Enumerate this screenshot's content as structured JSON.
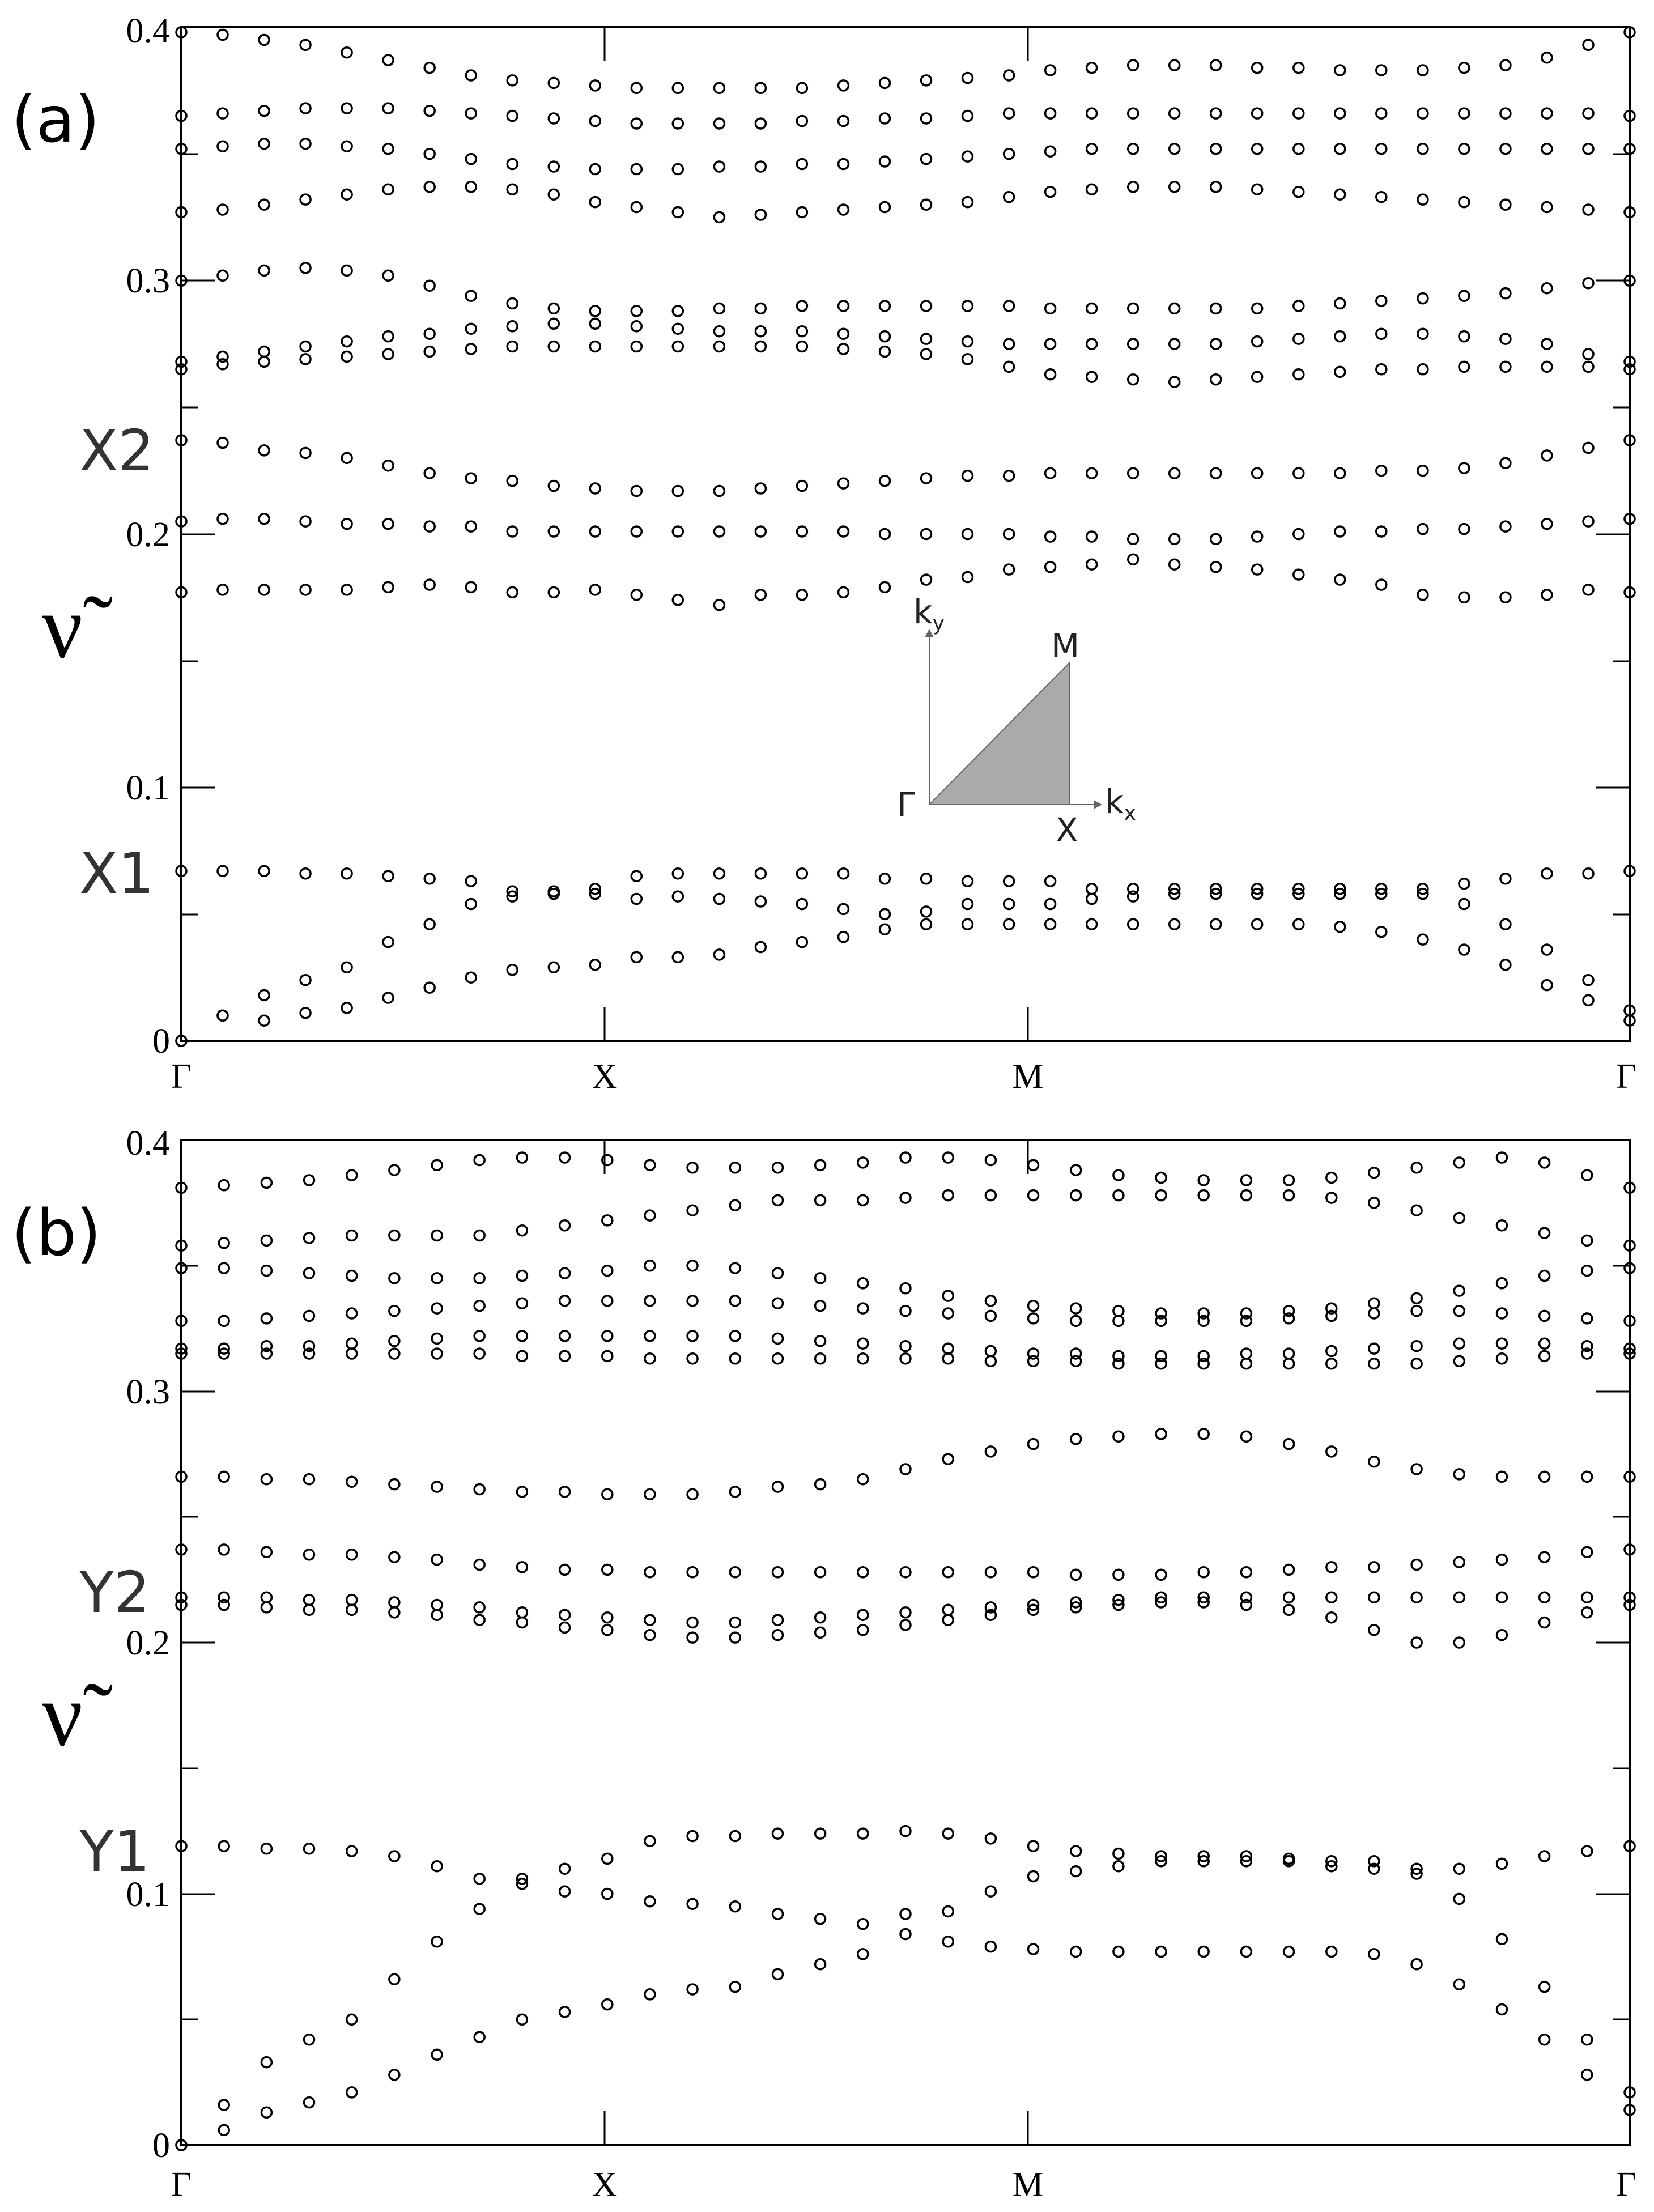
{
  "chart_data": [
    {
      "type": "scatter",
      "panel": "(a)",
      "ylabel": "ν̃",
      "ylim": [
        0,
        0.4
      ],
      "yticks": [
        "0",
        "0.1",
        "0.2",
        "0.3",
        "0.4"
      ],
      "xticks": [
        "Γ",
        "X",
        "M",
        "Γ"
      ],
      "annotations": [
        "X1",
        "X2"
      ],
      "inset": {
        "labels": [
          "Γ",
          "X",
          "M",
          "k",
          "y",
          "k",
          "x"
        ]
      },
      "bands": [
        [
          0.0,
          0.01,
          0.008,
          0.011,
          0.013,
          0.017,
          0.021,
          0.025,
          0.028,
          0.029,
          0.03,
          0.033,
          0.033,
          0.034,
          0.037,
          0.039,
          0.041,
          0.044,
          0.046,
          0.046,
          0.046,
          0.046,
          0.046,
          0.046,
          0.046,
          0.046,
          0.046,
          0.046,
          0.045,
          0.043,
          0.04,
          0.036,
          0.03,
          0.022,
          0.016,
          0.008
        ],
        [
          0.0,
          0.01,
          0.018,
          0.024,
          0.029,
          0.039,
          0.046,
          0.054,
          0.057,
          0.058,
          0.058,
          0.056,
          0.057,
          0.056,
          0.055,
          0.054,
          0.052,
          0.05,
          0.051,
          0.054,
          0.054,
          0.054,
          0.056,
          0.057,
          0.058,
          0.058,
          0.058,
          0.058,
          0.058,
          0.058,
          0.058,
          0.054,
          0.046,
          0.036,
          0.024,
          0.012
        ],
        [
          0.067,
          0.067,
          0.067,
          0.066,
          0.066,
          0.065,
          0.064,
          0.063,
          0.059,
          0.059,
          0.06,
          0.065,
          0.066,
          0.066,
          0.066,
          0.066,
          0.066,
          0.064,
          0.064,
          0.063,
          0.063,
          0.063,
          0.06,
          0.06,
          0.06,
          0.06,
          0.06,
          0.06,
          0.06,
          0.06,
          0.06,
          0.062,
          0.064,
          0.066,
          0.066,
          0.067
        ],
        [
          0.177,
          0.178,
          0.178,
          0.178,
          0.178,
          0.179,
          0.18,
          0.179,
          0.177,
          0.177,
          0.178,
          0.176,
          0.174,
          0.172,
          0.176,
          0.176,
          0.177,
          0.179,
          0.182,
          0.183,
          0.186,
          0.187,
          0.188,
          0.19,
          0.188,
          0.187,
          0.186,
          0.184,
          0.182,
          0.18,
          0.176,
          0.175,
          0.175,
          0.176,
          0.178,
          0.177
        ],
        [
          0.205,
          0.206,
          0.206,
          0.205,
          0.204,
          0.204,
          0.203,
          0.203,
          0.201,
          0.201,
          0.201,
          0.201,
          0.201,
          0.201,
          0.201,
          0.201,
          0.201,
          0.2,
          0.2,
          0.2,
          0.2,
          0.199,
          0.199,
          0.198,
          0.198,
          0.198,
          0.199,
          0.2,
          0.201,
          0.201,
          0.202,
          0.202,
          0.203,
          0.204,
          0.205,
          0.206
        ],
        [
          0.237,
          0.236,
          0.233,
          0.232,
          0.23,
          0.227,
          0.224,
          0.222,
          0.221,
          0.219,
          0.218,
          0.217,
          0.217,
          0.217,
          0.218,
          0.219,
          0.22,
          0.221,
          0.222,
          0.223,
          0.223,
          0.224,
          0.224,
          0.224,
          0.224,
          0.224,
          0.224,
          0.224,
          0.224,
          0.225,
          0.225,
          0.226,
          0.228,
          0.231,
          0.234,
          0.237
        ],
        [
          0.265,
          0.267,
          0.268,
          0.269,
          0.27,
          0.271,
          0.272,
          0.273,
          0.274,
          0.274,
          0.274,
          0.274,
          0.274,
          0.274,
          0.274,
          0.274,
          0.273,
          0.272,
          0.271,
          0.269,
          0.266,
          0.263,
          0.262,
          0.261,
          0.26,
          0.261,
          0.262,
          0.263,
          0.264,
          0.265,
          0.265,
          0.266,
          0.266,
          0.266,
          0.266,
          0.265
        ],
        [
          0.268,
          0.27,
          0.272,
          0.274,
          0.276,
          0.278,
          0.279,
          0.281,
          0.282,
          0.283,
          0.283,
          0.282,
          0.281,
          0.28,
          0.28,
          0.28,
          0.279,
          0.278,
          0.277,
          0.276,
          0.275,
          0.275,
          0.275,
          0.275,
          0.275,
          0.275,
          0.276,
          0.277,
          0.278,
          0.279,
          0.279,
          0.278,
          0.277,
          0.275,
          0.271,
          0.268
        ],
        [
          0.3,
          0.302,
          0.304,
          0.305,
          0.304,
          0.302,
          0.298,
          0.294,
          0.291,
          0.289,
          0.288,
          0.288,
          0.288,
          0.289,
          0.289,
          0.29,
          0.29,
          0.29,
          0.29,
          0.29,
          0.29,
          0.289,
          0.289,
          0.289,
          0.289,
          0.289,
          0.289,
          0.29,
          0.291,
          0.292,
          0.293,
          0.294,
          0.295,
          0.297,
          0.299,
          0.3
        ],
        [
          0.327,
          0.328,
          0.33,
          0.332,
          0.334,
          0.336,
          0.337,
          0.337,
          0.336,
          0.334,
          0.331,
          0.329,
          0.327,
          0.325,
          0.326,
          0.327,
          0.328,
          0.329,
          0.33,
          0.331,
          0.333,
          0.335,
          0.336,
          0.337,
          0.337,
          0.337,
          0.336,
          0.335,
          0.334,
          0.333,
          0.332,
          0.331,
          0.33,
          0.329,
          0.328,
          0.327
        ],
        [
          0.352,
          0.353,
          0.354,
          0.354,
          0.353,
          0.352,
          0.35,
          0.348,
          0.346,
          0.345,
          0.344,
          0.344,
          0.344,
          0.345,
          0.345,
          0.346,
          0.346,
          0.347,
          0.348,
          0.349,
          0.35,
          0.351,
          0.352,
          0.352,
          0.352,
          0.352,
          0.352,
          0.352,
          0.352,
          0.352,
          0.352,
          0.352,
          0.352,
          0.352,
          0.352,
          0.352
        ],
        [
          0.365,
          0.366,
          0.367,
          0.368,
          0.368,
          0.368,
          0.367,
          0.366,
          0.365,
          0.364,
          0.363,
          0.362,
          0.362,
          0.362,
          0.362,
          0.363,
          0.363,
          0.364,
          0.364,
          0.365,
          0.366,
          0.366,
          0.366,
          0.366,
          0.366,
          0.366,
          0.366,
          0.366,
          0.366,
          0.366,
          0.366,
          0.366,
          0.366,
          0.366,
          0.366,
          0.365
        ],
        [
          0.398,
          0.397,
          0.395,
          0.393,
          0.39,
          0.387,
          0.384,
          0.381,
          0.379,
          0.378,
          0.377,
          0.376,
          0.376,
          0.376,
          0.376,
          0.376,
          0.377,
          0.378,
          0.379,
          0.38,
          0.381,
          0.383,
          0.384,
          0.385,
          0.385,
          0.385,
          0.384,
          0.384,
          0.383,
          0.383,
          0.383,
          0.384,
          0.385,
          0.388,
          0.393,
          0.398
        ]
      ]
    },
    {
      "type": "scatter",
      "panel": "(b)",
      "ylabel": "ν̃",
      "ylim": [
        0,
        0.4
      ],
      "yticks": [
        "0",
        "0.1",
        "0.2",
        "0.3",
        "0.4"
      ],
      "xticks": [
        "Γ",
        "X",
        "M",
        "Γ"
      ],
      "annotations": [
        "Y1",
        "Y2"
      ],
      "bands": [
        [
          0.0,
          0.006,
          0.013,
          0.017,
          0.021,
          0.028,
          0.036,
          0.043,
          0.05,
          0.053,
          0.056,
          0.06,
          0.062,
          0.063,
          0.068,
          0.072,
          0.076,
          0.084,
          0.081,
          0.079,
          0.078,
          0.077,
          0.077,
          0.077,
          0.077,
          0.077,
          0.077,
          0.077,
          0.076,
          0.072,
          0.064,
          0.054,
          0.042,
          0.028,
          0.014
        ],
        [
          0.0,
          0.016,
          0.033,
          0.042,
          0.05,
          0.066,
          0.081,
          0.094,
          0.104,
          0.101,
          0.1,
          0.097,
          0.096,
          0.095,
          0.092,
          0.09,
          0.088,
          0.092,
          0.093,
          0.101,
          0.107,
          0.109,
          0.111,
          0.113,
          0.113,
          0.113,
          0.113,
          0.111,
          0.11,
          0.108,
          0.098,
          0.082,
          0.063,
          0.042,
          0.021
        ],
        [
          0.119,
          0.119,
          0.118,
          0.118,
          0.117,
          0.115,
          0.111,
          0.106,
          0.106,
          0.11,
          0.114,
          0.121,
          0.123,
          0.123,
          0.124,
          0.124,
          0.124,
          0.125,
          0.124,
          0.122,
          0.119,
          0.117,
          0.116,
          0.115,
          0.115,
          0.115,
          0.114,
          0.113,
          0.113,
          0.11,
          0.11,
          0.112,
          0.115,
          0.117,
          0.119
        ],
        [
          0.215,
          0.215,
          0.214,
          0.213,
          0.213,
          0.212,
          0.211,
          0.209,
          0.208,
          0.206,
          0.205,
          0.203,
          0.202,
          0.202,
          0.203,
          0.204,
          0.205,
          0.207,
          0.209,
          0.211,
          0.213,
          0.214,
          0.215,
          0.216,
          0.216,
          0.215,
          0.213,
          0.21,
          0.205,
          0.2,
          0.2,
          0.203,
          0.208,
          0.212,
          0.215
        ],
        [
          0.218,
          0.218,
          0.218,
          0.217,
          0.217,
          0.216,
          0.215,
          0.214,
          0.212,
          0.211,
          0.21,
          0.209,
          0.208,
          0.208,
          0.209,
          0.21,
          0.211,
          0.212,
          0.213,
          0.214,
          0.215,
          0.216,
          0.217,
          0.218,
          0.218,
          0.218,
          0.218,
          0.218,
          0.218,
          0.218,
          0.218,
          0.218,
          0.218,
          0.218,
          0.218
        ],
        [
          0.237,
          0.237,
          0.236,
          0.235,
          0.235,
          0.234,
          0.233,
          0.231,
          0.23,
          0.229,
          0.229,
          0.228,
          0.228,
          0.228,
          0.228,
          0.228,
          0.228,
          0.228,
          0.228,
          0.228,
          0.228,
          0.227,
          0.227,
          0.227,
          0.228,
          0.228,
          0.229,
          0.23,
          0.23,
          0.231,
          0.232,
          0.233,
          0.234,
          0.236,
          0.237
        ],
        [
          0.266,
          0.266,
          0.265,
          0.265,
          0.264,
          0.263,
          0.262,
          0.261,
          0.26,
          0.26,
          0.259,
          0.259,
          0.259,
          0.26,
          0.262,
          0.263,
          0.265,
          0.269,
          0.273,
          0.276,
          0.279,
          0.281,
          0.282,
          0.283,
          0.283,
          0.282,
          0.279,
          0.276,
          0.272,
          0.269,
          0.267,
          0.266,
          0.266,
          0.266,
          0.266
        ],
        [
          0.315,
          0.315,
          0.315,
          0.315,
          0.315,
          0.315,
          0.315,
          0.315,
          0.314,
          0.314,
          0.314,
          0.313,
          0.313,
          0.313,
          0.313,
          0.313,
          0.313,
          0.313,
          0.313,
          0.312,
          0.312,
          0.312,
          0.311,
          0.311,
          0.311,
          0.311,
          0.311,
          0.311,
          0.311,
          0.311,
          0.312,
          0.313,
          0.314,
          0.315,
          0.315
        ],
        [
          0.317,
          0.317,
          0.318,
          0.318,
          0.319,
          0.32,
          0.321,
          0.322,
          0.322,
          0.322,
          0.322,
          0.322,
          0.322,
          0.322,
          0.321,
          0.32,
          0.319,
          0.318,
          0.317,
          0.316,
          0.315,
          0.315,
          0.314,
          0.314,
          0.314,
          0.315,
          0.315,
          0.316,
          0.317,
          0.318,
          0.319,
          0.319,
          0.319,
          0.318,
          0.317
        ],
        [
          0.328,
          0.328,
          0.329,
          0.33,
          0.331,
          0.332,
          0.333,
          0.334,
          0.335,
          0.336,
          0.336,
          0.336,
          0.336,
          0.336,
          0.335,
          0.334,
          0.333,
          0.332,
          0.331,
          0.33,
          0.329,
          0.328,
          0.328,
          0.328,
          0.328,
          0.328,
          0.329,
          0.33,
          0.331,
          0.332,
          0.332,
          0.331,
          0.33,
          0.329,
          0.328
        ],
        [
          0.349,
          0.349,
          0.348,
          0.347,
          0.346,
          0.345,
          0.345,
          0.345,
          0.346,
          0.347,
          0.348,
          0.35,
          0.35,
          0.349,
          0.347,
          0.345,
          0.343,
          0.341,
          0.338,
          0.336,
          0.334,
          0.333,
          0.332,
          0.331,
          0.331,
          0.331,
          0.332,
          0.333,
          0.335,
          0.337,
          0.34,
          0.343,
          0.346,
          0.348,
          0.349
        ],
        [
          0.358,
          0.359,
          0.36,
          0.361,
          0.362,
          0.362,
          0.362,
          0.362,
          0.364,
          0.366,
          0.368,
          0.37,
          0.372,
          0.374,
          0.376,
          0.376,
          0.376,
          0.377,
          0.378,
          0.378,
          0.378,
          0.378,
          0.378,
          0.378,
          0.378,
          0.378,
          0.378,
          0.377,
          0.375,
          0.372,
          0.369,
          0.366,
          0.363,
          0.36,
          0.358
        ],
        [
          0.381,
          0.382,
          0.383,
          0.384,
          0.386,
          0.388,
          0.39,
          0.392,
          0.393,
          0.393,
          0.392,
          0.39,
          0.389,
          0.389,
          0.389,
          0.39,
          0.391,
          0.393,
          0.393,
          0.392,
          0.39,
          0.388,
          0.386,
          0.385,
          0.384,
          0.384,
          0.384,
          0.385,
          0.387,
          0.389,
          0.391,
          0.393,
          0.391,
          0.386,
          0.381
        ]
      ]
    }
  ]
}
